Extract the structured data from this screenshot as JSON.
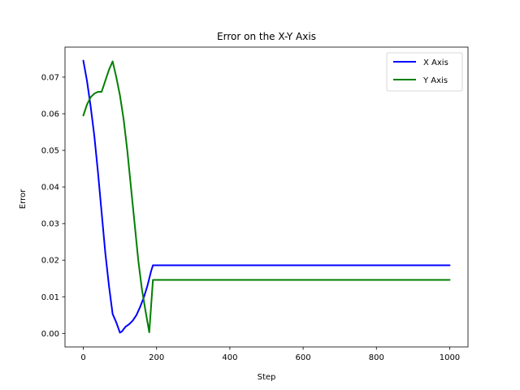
{
  "chart_data": {
    "type": "line",
    "title": "Error on the X-Y Axis",
    "xlabel": "Step",
    "ylabel": "Error",
    "xlim": [
      -50,
      1050
    ],
    "ylim": [
      -0.0037,
      0.0782
    ],
    "xticks": [
      0,
      200,
      400,
      600,
      800,
      1000
    ],
    "xtick_labels": [
      "0",
      "200",
      "400",
      "600",
      "800",
      "1000"
    ],
    "yticks": [
      0.0,
      0.01,
      0.02,
      0.03,
      0.04,
      0.05,
      0.06,
      0.07
    ],
    "ytick_labels": [
      "0.00",
      "0.01",
      "0.02",
      "0.03",
      "0.04",
      "0.05",
      "0.06",
      "0.07"
    ],
    "grid": false,
    "legend_position": "top-right",
    "series": [
      {
        "name": "X Axis",
        "color": "#0000ff",
        "x": [
          0,
          10,
          20,
          30,
          40,
          50,
          60,
          70,
          80,
          90,
          100,
          105,
          115,
          125,
          135,
          145,
          155,
          165,
          175,
          185,
          190,
          200,
          300,
          400,
          500,
          600,
          700,
          800,
          900,
          1000
        ],
        "y": [
          0.0745,
          0.069,
          0.062,
          0.054,
          0.044,
          0.033,
          0.022,
          0.013,
          0.0053,
          0.003,
          0.0002,
          0.0005,
          0.0018,
          0.0025,
          0.0035,
          0.005,
          0.0072,
          0.0098,
          0.013,
          0.017,
          0.0186,
          0.0186,
          0.0186,
          0.0186,
          0.0186,
          0.0186,
          0.0186,
          0.0186,
          0.0186,
          0.0186
        ]
      },
      {
        "name": "Y Axis",
        "color": "#008000",
        "x": [
          0,
          10,
          20,
          30,
          40,
          50,
          60,
          70,
          80,
          90,
          100,
          110,
          120,
          130,
          140,
          150,
          160,
          170,
          180,
          190,
          200,
          300,
          400,
          500,
          600,
          700,
          800,
          900,
          1000
        ],
        "y": [
          0.0595,
          0.0625,
          0.0645,
          0.0655,
          0.066,
          0.066,
          0.069,
          0.072,
          0.0743,
          0.07,
          0.065,
          0.0585,
          0.05,
          0.04,
          0.03,
          0.02,
          0.012,
          0.006,
          0.0003,
          0.0146,
          0.0146,
          0.0146,
          0.0146,
          0.0146,
          0.0146,
          0.0146,
          0.0146,
          0.0146,
          0.0146
        ]
      }
    ]
  }
}
